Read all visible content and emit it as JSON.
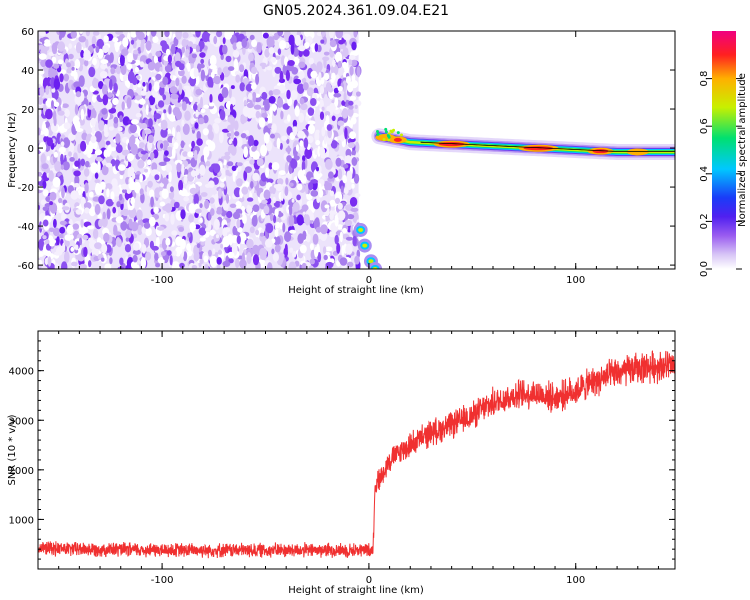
{
  "title": "GN05.2024.361.09.04.E21",
  "chart_data": [
    {
      "type": "heatmap",
      "xlabel": "Height of straight line (km)",
      "ylabel": "Frequency (Hz)",
      "xlim": [
        -160,
        148
      ],
      "ylim": [
        -62,
        60
      ],
      "xticks": [
        "-100",
        "0",
        "100"
      ],
      "yticks": [
        "-60",
        "-40",
        "-20",
        "0",
        "20",
        "40",
        "60"
      ],
      "colorbar": {
        "label": "Normalized spectral amplitude",
        "range": [
          0,
          1
        ],
        "ticks": [
          "0.0",
          "0.2",
          "0.4",
          "0.6",
          "0.8"
        ],
        "colors": [
          "#ffffff",
          "#c9a8f4",
          "#7b2cf0",
          "#2a2cf8",
          "#00c8ff",
          "#00e070",
          "#c8f000",
          "#ffb000",
          "#ff2020",
          "#f00080"
        ]
      },
      "noise_region_x": [
        -160,
        -5
      ],
      "trace": [
        {
          "x": 5,
          "y": 6
        },
        {
          "x": 20,
          "y": 3
        },
        {
          "x": 40,
          "y": 2
        },
        {
          "x": 60,
          "y": 1
        },
        {
          "x": 80,
          "y": 0
        },
        {
          "x": 100,
          "y": -1
        },
        {
          "x": 120,
          "y": -2
        },
        {
          "x": 148,
          "y": -2
        }
      ],
      "low_arc": [
        {
          "x": -4,
          "y": -42
        },
        {
          "x": -2,
          "y": -50
        },
        {
          "x": 1,
          "y": -58
        },
        {
          "x": 3,
          "y": -62
        }
      ]
    },
    {
      "type": "line",
      "xlabel": "Height of straight line (km)",
      "ylabel": "SNR (10 * v/v)",
      "xlim": [
        -160,
        148
      ],
      "ylim": [
        0,
        4800
      ],
      "xticks": [
        "-100",
        "0",
        "100"
      ],
      "yticks": [
        "1000",
        "2000",
        "3000",
        "4000"
      ],
      "color": "#f03030",
      "series": [
        {
          "x": [
            -160,
            -140,
            -120,
            -100,
            -80,
            -60,
            -40,
            -20,
            0,
            2,
            3,
            5,
            10,
            20,
            30,
            40,
            50,
            60,
            70,
            80,
            90,
            100,
            110,
            120,
            130,
            140,
            148
          ],
          "y": [
            420,
            400,
            390,
            380,
            380,
            380,
            380,
            380,
            380,
            400,
            1700,
            1800,
            2200,
            2500,
            2750,
            2900,
            3100,
            3350,
            3500,
            3550,
            3450,
            3600,
            3800,
            3950,
            4050,
            4100,
            4100
          ]
        }
      ]
    }
  ]
}
